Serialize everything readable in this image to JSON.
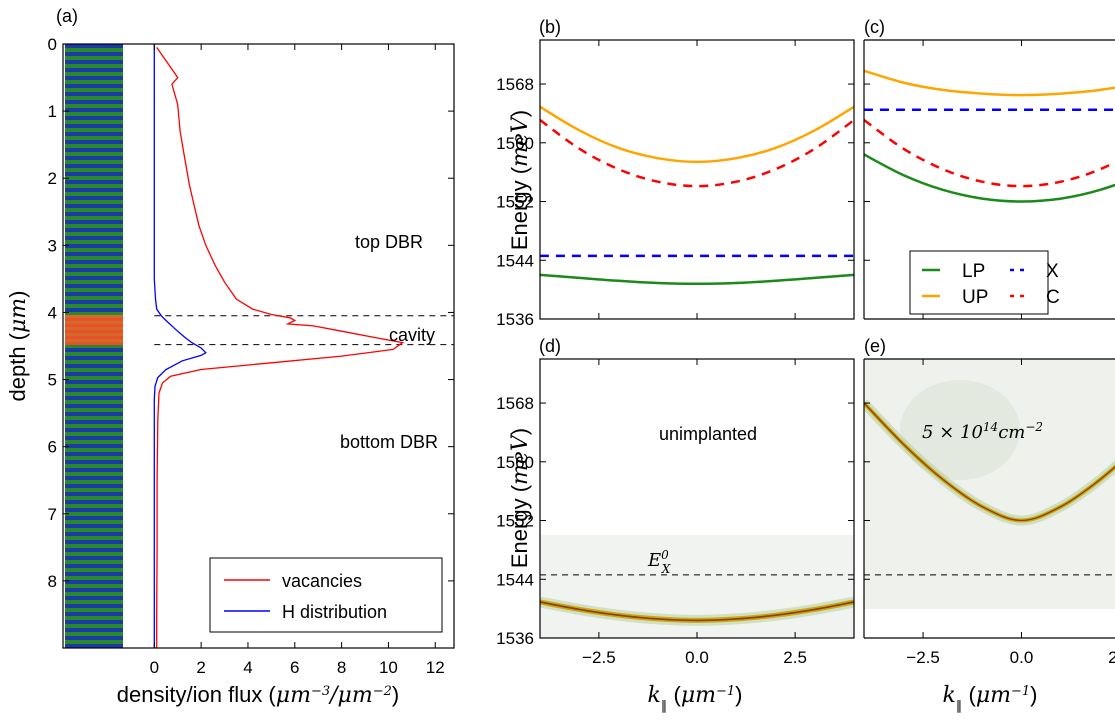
{
  "colors": {
    "green": "#1a8a1a",
    "orange": "#ffa500",
    "red": "#ff0000",
    "blue": "#0000ff",
    "black": "#000000",
    "dbr_green": "#2a8a2a",
    "dbr_blue": "#1a3aa8",
    "cavity_red": "#e8502a"
  },
  "labels": {
    "a": "(a)",
    "b": "(b)",
    "c": "(c)",
    "d": "(d)",
    "e": "(e)"
  },
  "chart_data": [
    {
      "id": "a",
      "type": "line",
      "xlabel": "density/ion flux (μm⁻³/μm⁻²)",
      "ylabel": "depth (μm)",
      "xlim": [
        -3.9,
        12.8
      ],
      "ylim": [
        0,
        9
      ],
      "y_inverted": true,
      "xticks": [
        0,
        2,
        4,
        6,
        8,
        10,
        12
      ],
      "yticks": [
        0,
        1,
        2,
        3,
        4,
        5,
        6,
        7,
        8
      ],
      "annotations": [
        "top DBR",
        "cavity",
        "bottom DBR"
      ],
      "cavity_bounds": [
        4.05,
        4.48
      ],
      "legend": {
        "placement": "bottom-right",
        "entries": [
          "vacancies",
          "H distribution"
        ]
      },
      "series": [
        {
          "name": "vacancies",
          "color": "red",
          "points": [
            [
              0.1,
              0.05
            ],
            [
              0.5,
              0.25
            ],
            [
              0.8,
              0.4
            ],
            [
              1.0,
              0.5
            ],
            [
              0.75,
              0.6
            ],
            [
              1.0,
              0.9
            ],
            [
              1.1,
              1.3
            ],
            [
              1.3,
              1.7
            ],
            [
              1.5,
              2.1
            ],
            [
              1.7,
              2.4
            ],
            [
              1.9,
              2.7
            ],
            [
              2.2,
              3.0
            ],
            [
              2.6,
              3.3
            ],
            [
              3.0,
              3.55
            ],
            [
              3.5,
              3.8
            ],
            [
              4.2,
              3.95
            ],
            [
              5.0,
              4.03
            ],
            [
              5.8,
              4.08
            ],
            [
              6.0,
              4.12
            ],
            [
              5.7,
              4.17
            ],
            [
              6.8,
              4.2
            ],
            [
              8.0,
              4.28
            ],
            [
              9.5,
              4.38
            ],
            [
              10.6,
              4.45
            ],
            [
              10.2,
              4.55
            ],
            [
              8.0,
              4.65
            ],
            [
              5.0,
              4.75
            ],
            [
              2.0,
              4.85
            ],
            [
              0.7,
              4.95
            ],
            [
              0.35,
              5.05
            ],
            [
              0.2,
              5.2
            ],
            [
              0.15,
              5.6
            ],
            [
              0.12,
              6.5
            ],
            [
              0.12,
              7.5
            ],
            [
              0.1,
              8.5
            ],
            [
              0.1,
              9.0
            ]
          ]
        },
        {
          "name": "H distribution",
          "color": "blue",
          "points": [
            [
              0.0,
              0.0
            ],
            [
              0.0,
              3.5
            ],
            [
              0.05,
              3.8
            ],
            [
              0.1,
              3.95
            ],
            [
              0.3,
              4.05
            ],
            [
              0.5,
              4.12
            ],
            [
              0.9,
              4.25
            ],
            [
              1.3,
              4.37
            ],
            [
              1.6,
              4.45
            ],
            [
              2.0,
              4.53
            ],
            [
              2.2,
              4.6
            ],
            [
              2.0,
              4.64
            ],
            [
              1.2,
              4.72
            ],
            [
              0.5,
              4.85
            ],
            [
              0.15,
              4.97
            ],
            [
              0.03,
              5.1
            ],
            [
              0.0,
              5.3
            ],
            [
              0.0,
              9.0
            ]
          ]
        }
      ]
    },
    {
      "id": "b",
      "type": "line",
      "ylabel": "Energy (meV)",
      "xlim": [
        -4,
        4
      ],
      "ylim": [
        1536,
        1574
      ],
      "yticks": [
        1536,
        1544,
        1552,
        1560,
        1568
      ],
      "series": [
        {
          "name": "UP",
          "color": "orange",
          "style": "solid",
          "x": [
            -4,
            -3,
            -2,
            -1,
            0,
            1,
            2,
            3,
            4
          ],
          "y": [
            1564.9,
            1561.7,
            1559.3,
            1557.9,
            1557.4,
            1557.9,
            1559.3,
            1561.7,
            1564.9
          ]
        },
        {
          "name": "C",
          "color": "red",
          "style": "dashed",
          "x": [
            -4,
            -3,
            -2,
            -1,
            0,
            1,
            2,
            3,
            4
          ],
          "y": [
            1563.1,
            1559.2,
            1556.4,
            1554.7,
            1554.1,
            1554.7,
            1556.4,
            1559.2,
            1563.1
          ]
        },
        {
          "name": "X",
          "color": "blue",
          "style": "dashed",
          "x": [
            -4,
            4
          ],
          "y": [
            1544.6,
            1544.6
          ]
        },
        {
          "name": "LP",
          "color": "green",
          "style": "solid",
          "x": [
            -4,
            -3,
            -2,
            -1,
            0,
            1,
            2,
            3,
            4
          ],
          "y": [
            1542.0,
            1541.6,
            1541.2,
            1540.9,
            1540.8,
            1540.9,
            1541.2,
            1541.6,
            1542.0
          ]
        }
      ]
    },
    {
      "id": "c",
      "type": "line",
      "xlim": [
        -4,
        4
      ],
      "ylim": [
        1536,
        1574
      ],
      "legend": {
        "placement": "lower-right",
        "entries": [
          "LP",
          "UP",
          "X",
          "C"
        ]
      },
      "series": [
        {
          "name": "UP",
          "color": "orange",
          "style": "solid",
          "x": [
            -4,
            -3,
            -2,
            -1,
            0,
            1,
            2,
            3,
            4
          ],
          "y": [
            1569.8,
            1568.2,
            1567.2,
            1566.7,
            1566.5,
            1566.7,
            1567.2,
            1568.2,
            1569.8
          ]
        },
        {
          "name": "X",
          "color": "blue",
          "style": "dashed",
          "x": [
            -4,
            4
          ],
          "y": [
            1564.5,
            1564.5
          ]
        },
        {
          "name": "C",
          "color": "red",
          "style": "dashed",
          "x": [
            -4,
            -3,
            -2,
            -1,
            0,
            1,
            2,
            3,
            4
          ],
          "y": [
            1563.1,
            1559.2,
            1556.4,
            1554.7,
            1554.1,
            1554.7,
            1556.4,
            1559.2,
            1563.1
          ]
        },
        {
          "name": "LP",
          "color": "green",
          "style": "solid",
          "x": [
            -4,
            -3,
            -2,
            -1,
            0,
            1,
            2,
            3,
            4
          ],
          "y": [
            1558.4,
            1555.6,
            1553.6,
            1552.4,
            1552.0,
            1552.4,
            1553.6,
            1555.6,
            1558.4
          ]
        }
      ]
    },
    {
      "id": "d",
      "type": "heatmap",
      "xlabel": "k∥ (μm⁻¹)",
      "ylabel": "Energy (meV)",
      "xlim": [
        -4,
        4
      ],
      "ylim": [
        1536,
        1574
      ],
      "xticks": [
        -2.5,
        0.0,
        2.5
      ],
      "xtick_labels": [
        "−2.5",
        "0.0",
        "2.5"
      ],
      "yticks": [
        1536,
        1544,
        1552,
        1560,
        1568
      ],
      "annotation": "unimplanted",
      "exciton_label": "E_X^0",
      "exciton_line": 1544.6,
      "dispersion": {
        "x": [
          -4,
          -3,
          -2,
          -1,
          0,
          1,
          2,
          3,
          4
        ],
        "y": [
          1540.9,
          1539.9,
          1539.1,
          1538.6,
          1538.4,
          1538.6,
          1539.1,
          1539.9,
          1540.9
        ]
      }
    },
    {
      "id": "e",
      "type": "heatmap",
      "xlabel": "k∥ (μm⁻¹)",
      "xlim": [
        -4,
        4
      ],
      "ylim": [
        1536,
        1574
      ],
      "xticks": [
        -2.5,
        0.0,
        2.5
      ],
      "xtick_labels": [
        "−2.5",
        "0.0",
        "2.5"
      ],
      "annotation": "5 × 10^14 cm^-2",
      "exciton_line": 1544.6,
      "dispersion": {
        "x": [
          -4,
          -3,
          -2,
          -1,
          0,
          1,
          2,
          3,
          4
        ],
        "y": [
          1568.0,
          1562.4,
          1557.6,
          1553.9,
          1552.0,
          1553.9,
          1557.6,
          1562.4,
          1568.0
        ]
      }
    }
  ]
}
